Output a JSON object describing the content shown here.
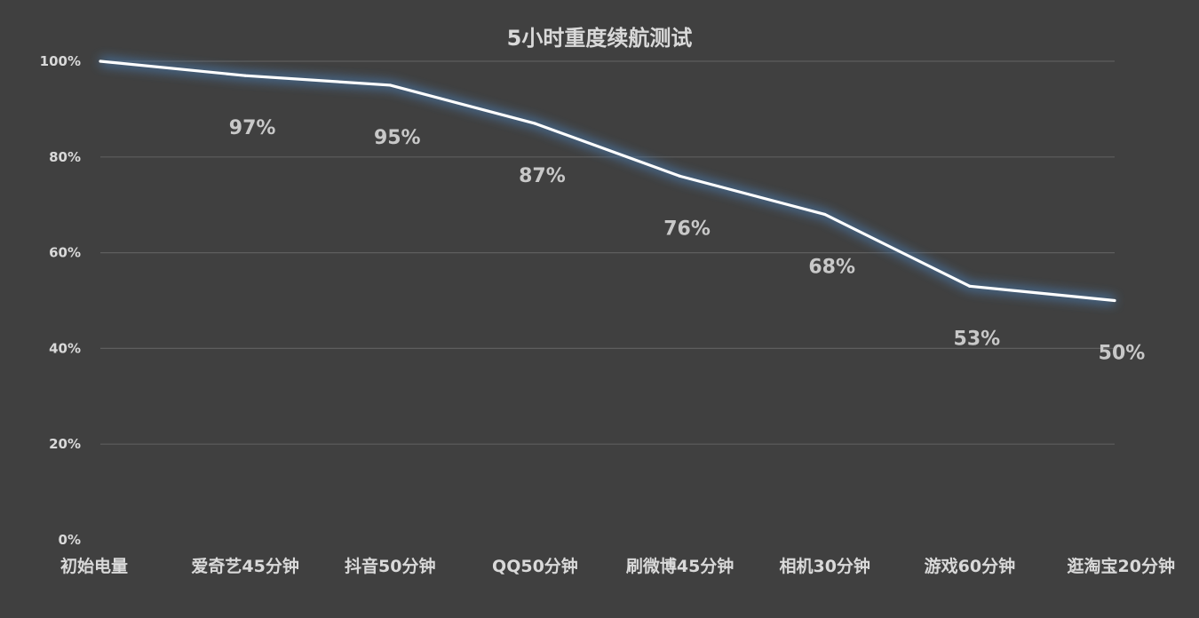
{
  "chart_data": {
    "type": "line",
    "title": "5小时重度续航测试",
    "categories": [
      "初始电量",
      "爱奇艺45分钟",
      "抖音50分钟",
      "QQ50分钟",
      "刷微博45分钟",
      "相机30分钟",
      "游戏60分钟",
      "逛淘宝20分钟"
    ],
    "series": [
      {
        "values": [
          100,
          97,
          95,
          87,
          76,
          68,
          53,
          50
        ],
        "data_labels": [
          "",
          "97%",
          "95%",
          "87%",
          "76%",
          "68%",
          "53%",
          "50%"
        ]
      }
    ],
    "ylim": [
      0,
      100
    ],
    "y_ticks": [
      "0%",
      "20%",
      "40%",
      "60%",
      "80%",
      "100%"
    ],
    "grid": true,
    "legend": "none",
    "colors": {
      "background": "#404040",
      "line": "#ffffff",
      "glow": "#4a7bb0",
      "grid": "#5e5e5e",
      "text": "#d9d9d9"
    }
  }
}
